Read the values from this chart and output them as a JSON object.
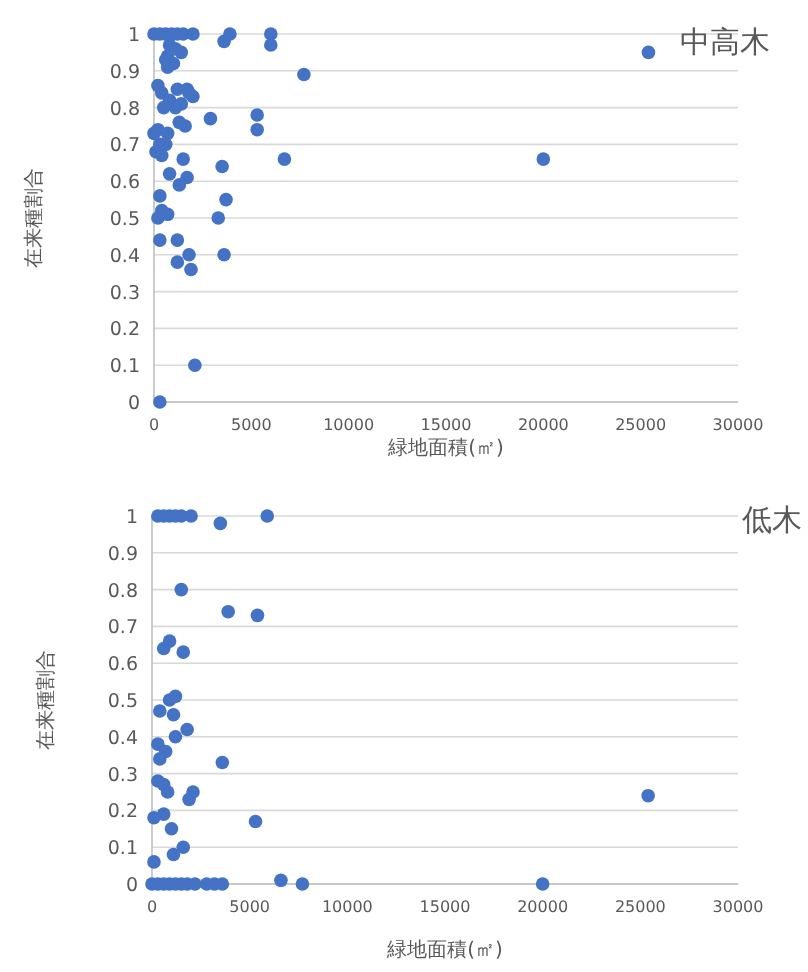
{
  "chart_data": [
    {
      "type": "scatter",
      "title": "中高木",
      "xlabel": "緑地面積(㎡)",
      "ylabel": "在来種割合",
      "xlim": [
        0,
        30000
      ],
      "ylim": [
        0,
        1
      ],
      "xticks": [
        0,
        5000,
        10000,
        15000,
        20000,
        25000,
        30000
      ],
      "yticks": [
        0,
        0.1,
        0.2,
        0.3,
        0.4,
        0.5,
        0.6,
        0.7,
        0.8,
        0.9,
        1
      ],
      "grid": "y",
      "marker": "circle",
      "series": [
        {
          "color": "#4472c4",
          "x": [
            0,
            300,
            600,
            900,
            1200,
            1500,
            2000,
            3600,
            3900,
            6000,
            6000,
            800,
            1100,
            1400,
            700,
            1000,
            600,
            7700,
            700,
            200,
            400,
            1200,
            1700,
            2000,
            800,
            1400,
            500,
            1100,
            1800,
            2900,
            5300,
            5300,
            1300,
            1600,
            0,
            200,
            700,
            300,
            600,
            100,
            400,
            1500,
            6700,
            3500,
            800,
            1700,
            1300,
            300,
            3700,
            400,
            200,
            700,
            3300,
            300,
            1200,
            1200,
            1800,
            1900,
            3600,
            2100,
            300,
            20000,
            25400
          ],
          "values": [
            1,
            1,
            1,
            1,
            1,
            1,
            1,
            0.98,
            1,
            1,
            0.97,
            0.97,
            0.96,
            0.95,
            0.94,
            0.92,
            0.93,
            0.89,
            0.91,
            0.86,
            0.84,
            0.85,
            0.85,
            0.83,
            0.82,
            0.81,
            0.8,
            0.8,
            0.84,
            0.77,
            0.78,
            0.74,
            0.76,
            0.75,
            0.73,
            0.74,
            0.73,
            0.7,
            0.7,
            0.68,
            0.67,
            0.66,
            0.66,
            0.64,
            0.62,
            0.61,
            0.59,
            0.56,
            0.55,
            0.52,
            0.5,
            0.51,
            0.5,
            0.44,
            0.44,
            0.38,
            0.4,
            0.36,
            0.4,
            0.1,
            0,
            0.66,
            0.95
          ]
        }
      ]
    },
    {
      "type": "scatter",
      "title": "低木",
      "xlabel": "緑地面積(㎡)",
      "ylabel": "在来種割合",
      "xlim": [
        0,
        30000
      ],
      "ylim": [
        0,
        1
      ],
      "xticks": [
        0,
        5000,
        10000,
        15000,
        20000,
        25000,
        30000
      ],
      "yticks": [
        0,
        0.1,
        0.2,
        0.3,
        0.4,
        0.5,
        0.6,
        0.7,
        0.8,
        0.9,
        1
      ],
      "grid": "y",
      "marker": "circle",
      "series": [
        {
          "color": "#4472c4",
          "x": [
            300,
            600,
            900,
            1200,
            1500,
            2000,
            3500,
            5900,
            1500,
            3900,
            5400,
            900,
            600,
            1600,
            400,
            900,
            1200,
            1100,
            1800,
            1200,
            300,
            700,
            400,
            3600,
            300,
            600,
            800,
            1900,
            2100,
            100,
            600,
            5300,
            1000,
            100,
            1100,
            1600,
            0,
            300,
            600,
            900,
            1200,
            1500,
            1800,
            2200,
            2800,
            3200,
            3600,
            6600,
            7700,
            20000,
            25400
          ],
          "values": [
            1,
            1,
            1,
            1,
            1,
            1,
            0.98,
            1,
            0.8,
            0.74,
            0.73,
            0.66,
            0.64,
            0.63,
            0.47,
            0.5,
            0.51,
            0.46,
            0.42,
            0.4,
            0.38,
            0.36,
            0.34,
            0.33,
            0.28,
            0.27,
            0.25,
            0.23,
            0.25,
            0.18,
            0.19,
            0.17,
            0.15,
            0.06,
            0.08,
            0.1,
            0,
            0,
            0,
            0,
            0,
            0,
            0,
            0,
            0,
            0,
            0,
            0.01,
            0,
            0,
            0.24
          ]
        }
      ]
    }
  ]
}
